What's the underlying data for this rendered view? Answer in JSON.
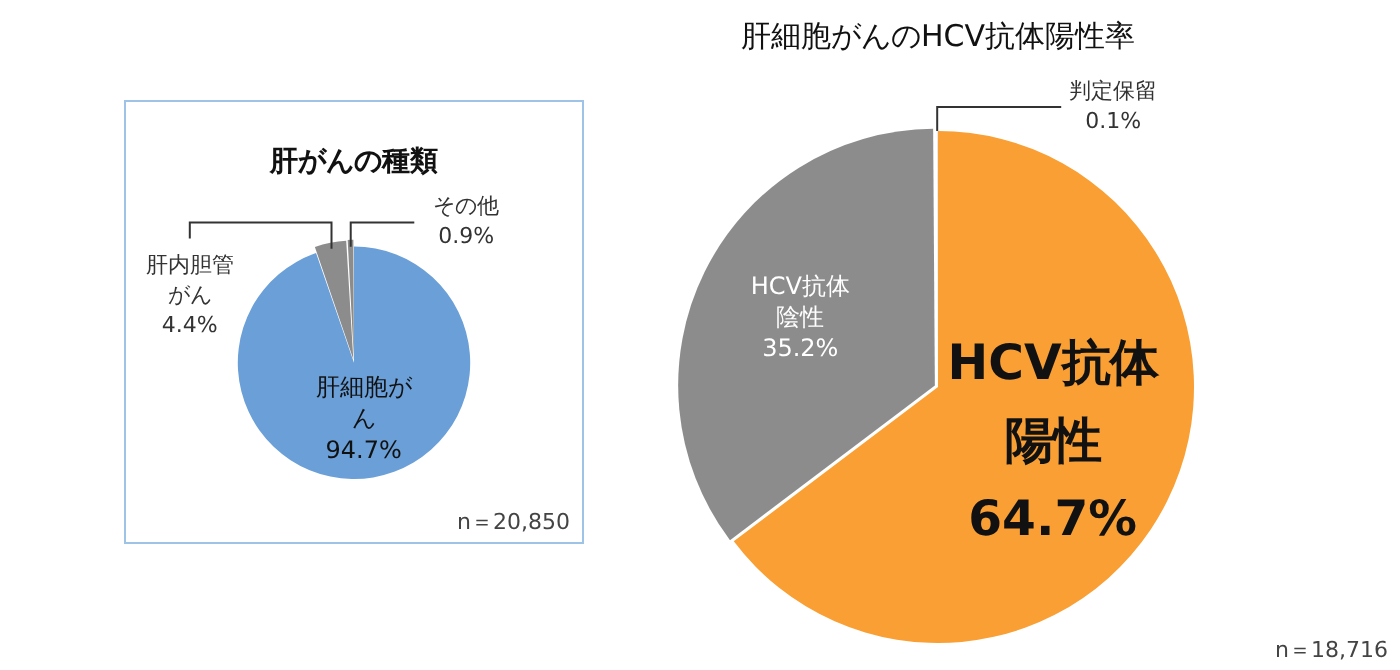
{
  "chart_data": [
    {
      "type": "pie",
      "title": "肝がんの種類",
      "categories": [
        "肝細胞がん",
        "肝内胆管がん",
        "その他"
      ],
      "values": [
        94.7,
        4.4,
        0.9
      ],
      "value_labels": [
        "94.7%",
        "4.4%",
        "0.9%"
      ],
      "colors": [
        "#6a9fd8",
        "#8c8c8c",
        "#8c8c8c"
      ],
      "annotations": [
        "n＝20,850"
      ],
      "legend": false
    },
    {
      "type": "pie",
      "title": "肝細胞がんのHCV抗体陽性率",
      "categories": [
        "HCV抗体陽性",
        "HCV抗体陰性",
        "判定保留"
      ],
      "values": [
        64.7,
        35.2,
        0.1
      ],
      "value_labels": [
        "64.7%",
        "35.2%",
        "0.1%"
      ],
      "colors": [
        "#f99f33",
        "#8c8c8c",
        "#d0d0d0"
      ],
      "annotations": [
        "n＝18,716"
      ],
      "legend": false
    }
  ]
}
